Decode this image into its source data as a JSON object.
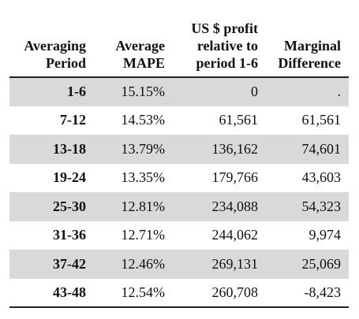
{
  "table": {
    "headers": [
      [
        "Averaging",
        "Period"
      ],
      [
        "Average",
        "MAPE"
      ],
      [
        "US $ profit",
        "relative to",
        "period 1-6"
      ],
      [
        "Marginal",
        "Difference"
      ]
    ],
    "rows": [
      {
        "period": "1-6",
        "mape": "15.15%",
        "profit": "0",
        "marginal": "."
      },
      {
        "period": "7-12",
        "mape": "14.53%",
        "profit": "61,561",
        "marginal": "61,561"
      },
      {
        "period": "13-18",
        "mape": "13.79%",
        "profit": "136,162",
        "marginal": "74,601"
      },
      {
        "period": "19-24",
        "mape": "13.35%",
        "profit": "179,766",
        "marginal": "43,603"
      },
      {
        "period": "25-30",
        "mape": "12.81%",
        "profit": "234,088",
        "marginal": "54,323"
      },
      {
        "period": "31-36",
        "mape": "12.71%",
        "profit": "244,062",
        "marginal": "9,974"
      },
      {
        "period": "37-42",
        "mape": "12.46%",
        "profit": "269,131",
        "marginal": "25,069"
      },
      {
        "period": "43-48",
        "mape": "12.54%",
        "profit": "260,708",
        "marginal": "-8,423"
      }
    ],
    "shade_color": "#d9d9d9"
  }
}
